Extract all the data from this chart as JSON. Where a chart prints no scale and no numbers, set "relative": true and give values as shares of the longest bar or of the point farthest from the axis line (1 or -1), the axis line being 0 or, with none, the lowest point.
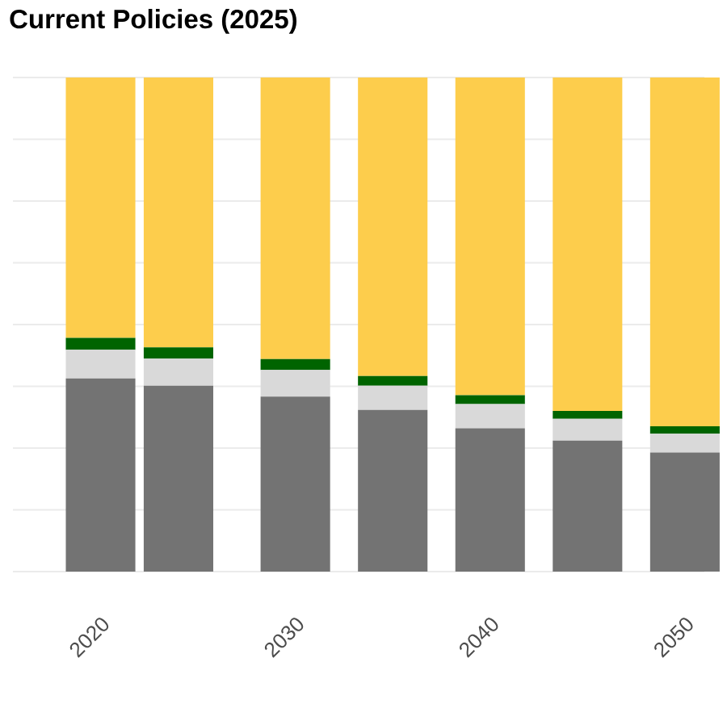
{
  "chart_data": {
    "type": "bar",
    "title": "Current Policies (2025)",
    "stacked": true,
    "relative": true,
    "grid": "y",
    "x": [
      2020,
      2024,
      2030,
      2035,
      2040,
      2045,
      2050
    ],
    "xlim": [
      2015.5,
      2051
    ],
    "xticks": [
      2020,
      2030,
      2040,
      2050
    ],
    "series": [
      {
        "color": "#737373",
        "values": [
          0.391,
          0.376,
          0.354,
          0.327,
          0.29,
          0.265,
          0.241
        ]
      },
      {
        "color": "#d9d9d9",
        "values": [
          0.058,
          0.055,
          0.054,
          0.049,
          0.049,
          0.044,
          0.038
        ]
      },
      {
        "color": "#006400",
        "values": [
          0.024,
          0.023,
          0.022,
          0.02,
          0.018,
          0.016,
          0.015
        ]
      },
      {
        "color": "#fdcd4c",
        "values": [
          0.527,
          0.546,
          0.57,
          0.604,
          0.643,
          0.675,
          0.706
        ]
      }
    ]
  }
}
